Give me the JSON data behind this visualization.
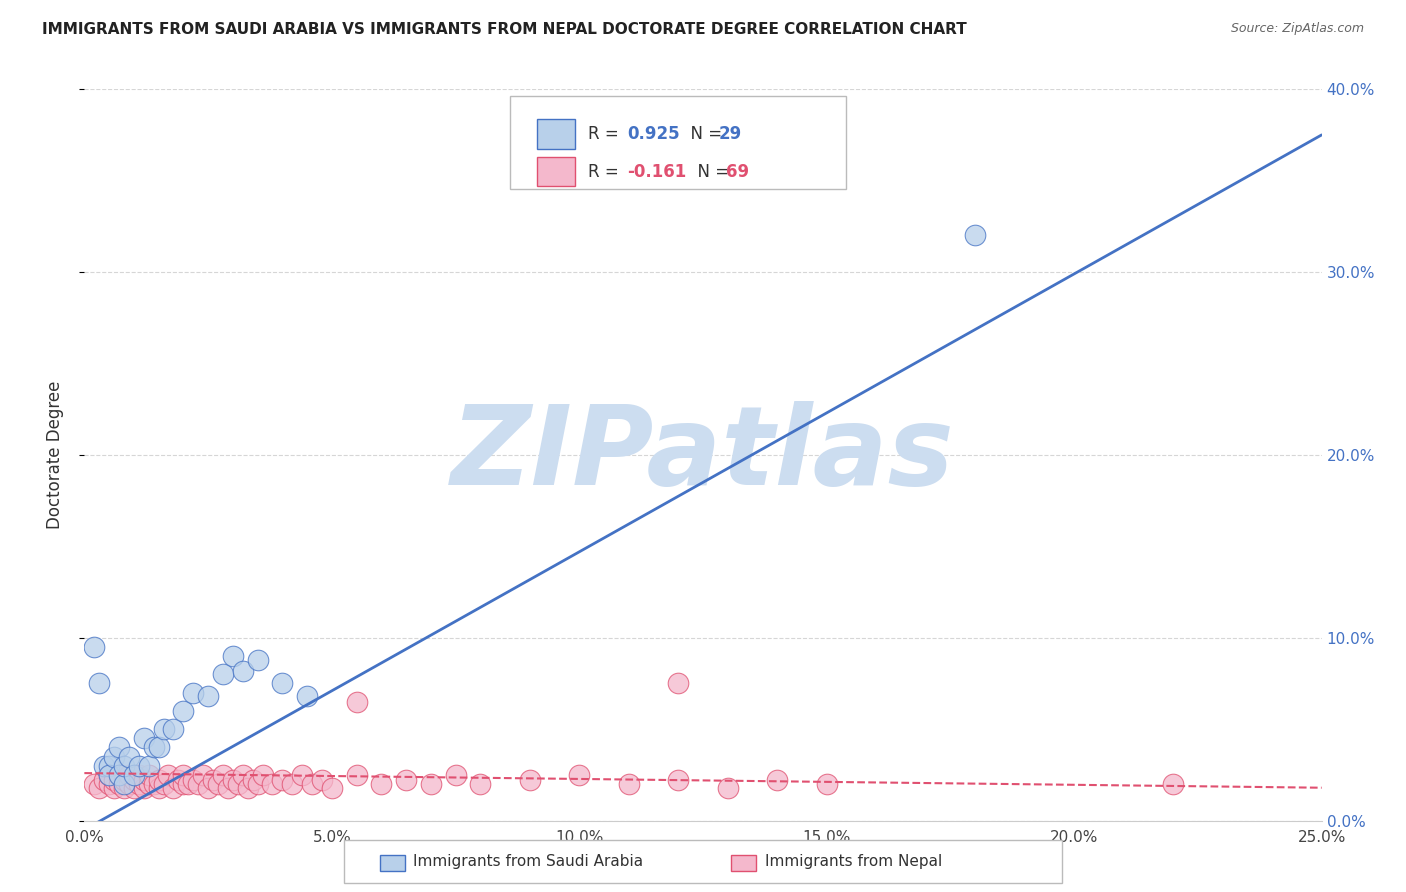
{
  "title": "IMMIGRANTS FROM SAUDI ARABIA VS IMMIGRANTS FROM NEPAL DOCTORATE DEGREE CORRELATION CHART",
  "source": "Source: ZipAtlas.com",
  "ylabel": "Doctorate Degree",
  "xlim": [
    0.0,
    0.25
  ],
  "ylim": [
    0.0,
    0.4
  ],
  "xticks": [
    0.0,
    0.05,
    0.1,
    0.15,
    0.2,
    0.25
  ],
  "yticks": [
    0.0,
    0.1,
    0.2,
    0.3,
    0.4
  ],
  "xtick_labels": [
    "0.0%",
    "5.0%",
    "10.0%",
    "15.0%",
    "20.0%",
    "25.0%"
  ],
  "ytick_labels_right": [
    "0.0%",
    "10.0%",
    "20.0%",
    "30.0%",
    "40.0%"
  ],
  "saudi_R": 0.925,
  "saudi_N": 29,
  "nepal_R": -0.161,
  "nepal_N": 69,
  "saudi_color": "#b8d0ea",
  "saudi_line_color": "#4472c4",
  "nepal_color": "#f4b8cc",
  "nepal_line_color": "#e05070",
  "watermark": "ZIPatlas",
  "watermark_color": "#ccddf0",
  "saudi_trend_x0": 0.0,
  "saudi_trend_y0": -0.005,
  "saudi_trend_x1": 0.25,
  "saudi_trend_y1": 0.375,
  "nepal_trend_x0": 0.0,
  "nepal_trend_y0": 0.026,
  "nepal_trend_x1": 0.25,
  "nepal_trend_y1": 0.018,
  "saudi_points_x": [
    0.002,
    0.003,
    0.004,
    0.005,
    0.005,
    0.006,
    0.007,
    0.007,
    0.008,
    0.008,
    0.009,
    0.01,
    0.011,
    0.012,
    0.013,
    0.014,
    0.015,
    0.016,
    0.018,
    0.02,
    0.022,
    0.025,
    0.028,
    0.03,
    0.032,
    0.035,
    0.04,
    0.045,
    0.18
  ],
  "saudi_points_y": [
    0.095,
    0.075,
    0.03,
    0.03,
    0.025,
    0.035,
    0.025,
    0.04,
    0.02,
    0.03,
    0.035,
    0.025,
    0.03,
    0.045,
    0.03,
    0.04,
    0.04,
    0.05,
    0.05,
    0.06,
    0.07,
    0.068,
    0.08,
    0.09,
    0.082,
    0.088,
    0.075,
    0.068,
    0.32
  ],
  "nepal_points_x": [
    0.002,
    0.003,
    0.004,
    0.005,
    0.005,
    0.006,
    0.006,
    0.007,
    0.007,
    0.008,
    0.008,
    0.009,
    0.009,
    0.01,
    0.01,
    0.011,
    0.011,
    0.012,
    0.012,
    0.013,
    0.013,
    0.014,
    0.015,
    0.015,
    0.016,
    0.017,
    0.018,
    0.019,
    0.02,
    0.02,
    0.021,
    0.022,
    0.023,
    0.024,
    0.025,
    0.026,
    0.027,
    0.028,
    0.029,
    0.03,
    0.031,
    0.032,
    0.033,
    0.034,
    0.035,
    0.036,
    0.038,
    0.04,
    0.042,
    0.044,
    0.046,
    0.048,
    0.05,
    0.055,
    0.06,
    0.065,
    0.07,
    0.075,
    0.08,
    0.09,
    0.1,
    0.11,
    0.12,
    0.13,
    0.14,
    0.15,
    0.22,
    0.055,
    0.12
  ],
  "nepal_points_y": [
    0.02,
    0.018,
    0.022,
    0.02,
    0.025,
    0.018,
    0.022,
    0.02,
    0.025,
    0.018,
    0.022,
    0.02,
    0.025,
    0.018,
    0.022,
    0.02,
    0.025,
    0.018,
    0.022,
    0.02,
    0.025,
    0.02,
    0.018,
    0.022,
    0.02,
    0.025,
    0.018,
    0.022,
    0.02,
    0.025,
    0.02,
    0.022,
    0.02,
    0.025,
    0.018,
    0.022,
    0.02,
    0.025,
    0.018,
    0.022,
    0.02,
    0.025,
    0.018,
    0.022,
    0.02,
    0.025,
    0.02,
    0.022,
    0.02,
    0.025,
    0.02,
    0.022,
    0.018,
    0.025,
    0.02,
    0.022,
    0.02,
    0.025,
    0.02,
    0.022,
    0.025,
    0.02,
    0.022,
    0.018,
    0.022,
    0.02,
    0.02,
    0.065,
    0.075
  ]
}
